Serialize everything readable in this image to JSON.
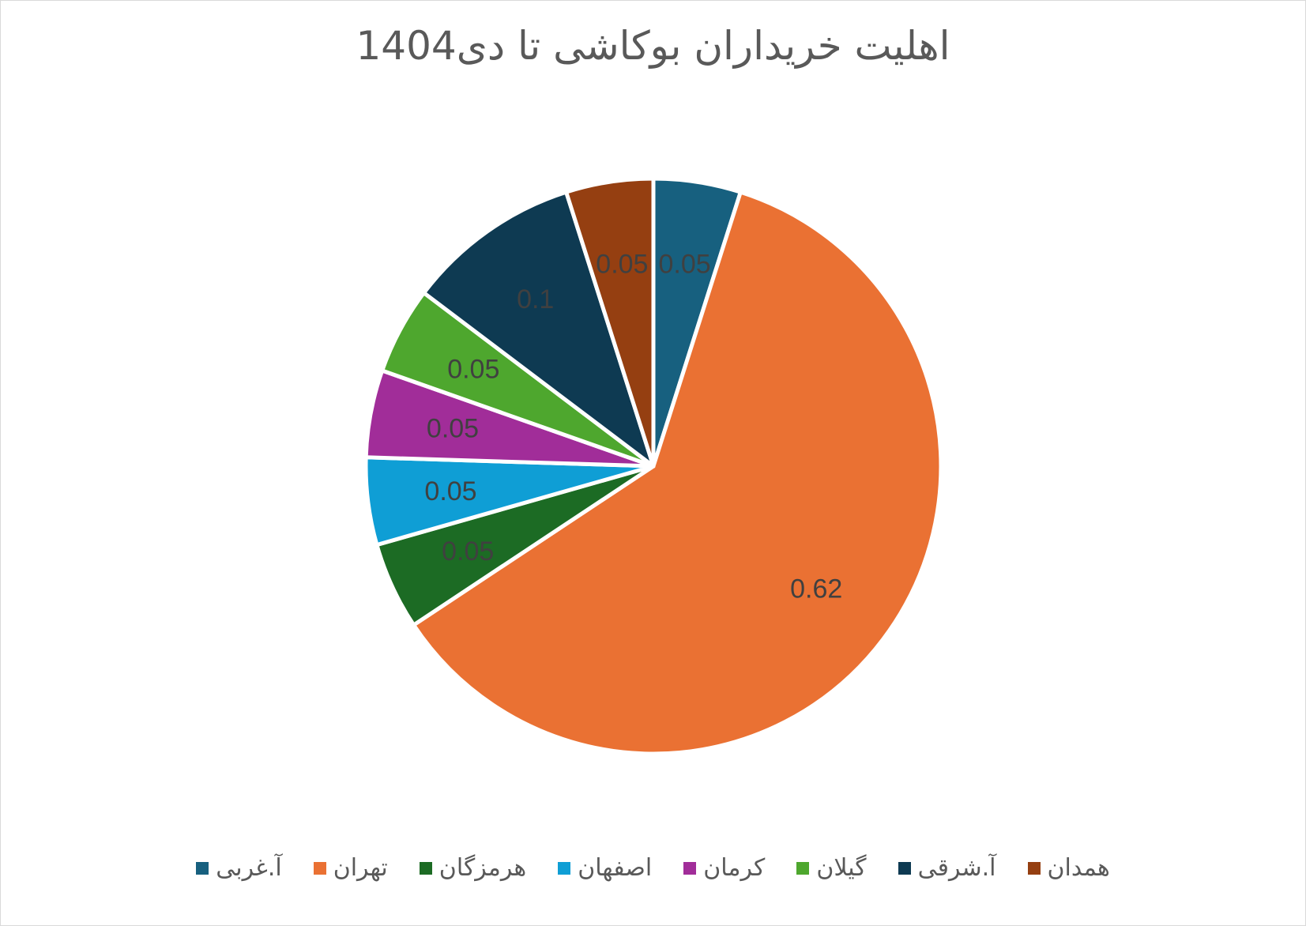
{
  "chart_data": {
    "type": "pie",
    "title": "اهلیت خریداران بوکاشی تا دی1404",
    "legend_position": "bottom",
    "slices": [
      {
        "label": "آ.غربی",
        "value": 0.05,
        "color": "#17607f"
      },
      {
        "label": "تهران",
        "value": 0.62,
        "color": "#ea7133"
      },
      {
        "label": "هرمزگان",
        "value": 0.05,
        "color": "#1c6b24"
      },
      {
        "label": "اصفهان",
        "value": 0.05,
        "color": "#0f9ed5"
      },
      {
        "label": "کرمان",
        "value": 0.05,
        "color": "#a12d99"
      },
      {
        "label": "گیلان",
        "value": 0.05,
        "color": "#4ea72e"
      },
      {
        "label": "آ.شرقی",
        "value": 0.1,
        "color": "#0e3a52"
      },
      {
        "label": "همدان",
        "value": 0.05,
        "color": "#953f11"
      }
    ],
    "data_labels": [
      "0.05",
      "0.62",
      "0.05",
      "0.05",
      "0.05",
      "0.05",
      "0.1",
      "0.05"
    ]
  }
}
